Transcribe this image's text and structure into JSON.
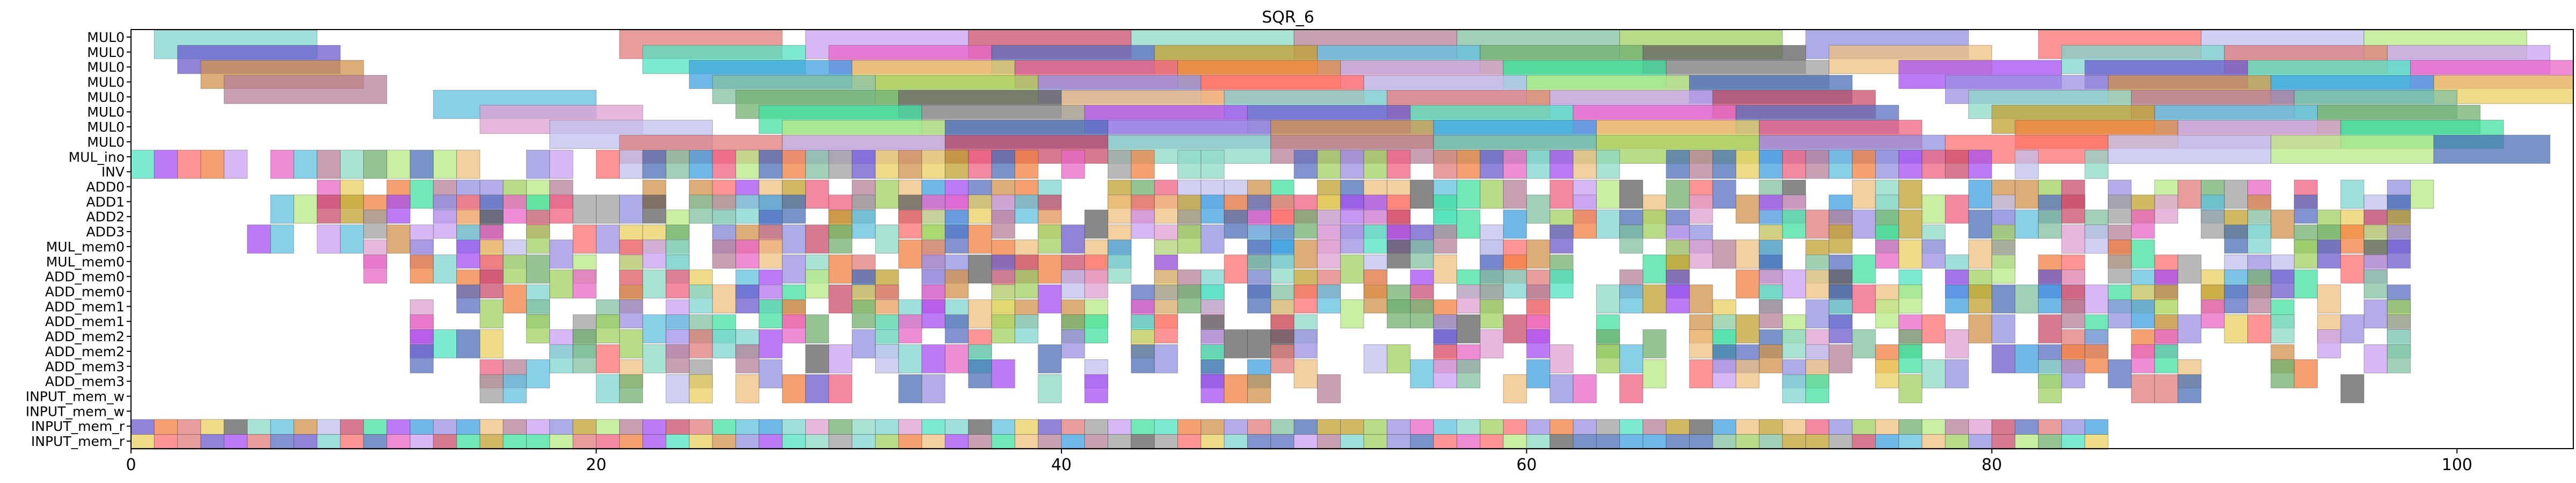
{
  "chart_data": {
    "type": "gantt",
    "title": "SQR_6",
    "xlabel": "",
    "ylabel": "",
    "xlim": [
      0,
      105
    ],
    "x_ticks": [
      0,
      20,
      40,
      60,
      80,
      100
    ],
    "grid": false,
    "legend": "none",
    "rows": [
      "MUL0",
      "MUL0",
      "MUL0",
      "MUL0",
      "MUL0",
      "MUL0",
      "MUL0",
      "MUL0",
      "MUL_ino",
      "INV",
      "ADD0",
      "ADD1",
      "ADD2",
      "ADD3",
      "MUL_mem0",
      "MUL_mem0",
      "ADD_mem0",
      "ADD_mem0",
      "ADD_mem1",
      "ADD_mem1",
      "ADD_mem2",
      "ADD_mem2",
      "ADD_mem3",
      "ADD_mem3",
      "INPUT_mem_w",
      "INPUT_mem_w",
      "INPUT_mem_r",
      "INPUT_mem_r"
    ],
    "palette": [
      "#7fd6d0",
      "#b8e986",
      "#a64ff2",
      "#e07b7b",
      "#4a6fb5",
      "#6a5acd",
      "#c9a0f0",
      "#9b8fe0",
      "#50e3c2",
      "#c94c6a",
      "#d2924a",
      "#e865c8",
      "#8fd8c8",
      "#3fa0e0",
      "#5a6fc0",
      "#b67f9a",
      "#e8d060",
      "#c0a030",
      "#80c0a0",
      "#f06080",
      "#60c0e0",
      "#a0d060",
      "#f08040",
      "#70b070",
      "#9090e0",
      "#e0a0d0",
      "#606060",
      "#ff7070",
      "#40e0a0",
      "#f0c080",
      "#c0c0f0",
      "#a0a0a0"
    ],
    "mul_bars": [
      [
        [
          1,
          8
        ],
        [
          21,
          28
        ],
        [
          29,
          36
        ],
        [
          36,
          43
        ],
        [
          43,
          50
        ],
        [
          50,
          57
        ],
        [
          57,
          64
        ],
        [
          64,
          71
        ],
        [
          72,
          79
        ],
        [
          82,
          89
        ],
        [
          89,
          96
        ],
        [
          96,
          103
        ]
      ],
      [
        [
          2,
          9
        ],
        [
          22,
          29
        ],
        [
          30,
          37
        ],
        [
          37,
          44
        ],
        [
          44,
          51
        ],
        [
          51,
          58
        ],
        [
          58,
          65
        ],
        [
          65,
          72
        ],
        [
          73,
          80
        ],
        [
          83,
          90
        ],
        [
          90,
          97
        ],
        [
          97,
          104
        ]
      ],
      [
        [
          3,
          10
        ],
        [
          24,
          31
        ],
        [
          31,
          38
        ],
        [
          38,
          45
        ],
        [
          45,
          52
        ],
        [
          52,
          59
        ],
        [
          59,
          66
        ],
        [
          66,
          73
        ],
        [
          76,
          83
        ],
        [
          84,
          91
        ],
        [
          91,
          98
        ],
        [
          98,
          105
        ]
      ],
      [
        [
          4,
          11
        ],
        [
          25,
          32
        ],
        [
          32,
          39
        ],
        [
          39,
          46
        ],
        [
          46,
          53
        ],
        [
          53,
          60
        ],
        [
          60,
          67
        ],
        [
          67,
          74
        ],
        [
          78,
          85
        ],
        [
          85,
          92
        ],
        [
          92,
          99
        ],
        [
          99,
          106
        ]
      ],
      [
        [
          13,
          20
        ],
        [
          26,
          33
        ],
        [
          33,
          40
        ],
        [
          40,
          47
        ],
        [
          47,
          54
        ],
        [
          54,
          61
        ],
        [
          61,
          68
        ],
        [
          68,
          75
        ],
        [
          79,
          86
        ],
        [
          86,
          93
        ],
        [
          93,
          100
        ]
      ],
      [
        [
          15,
          22
        ],
        [
          27,
          34
        ],
        [
          34,
          41
        ],
        [
          41,
          48
        ],
        [
          48,
          55
        ],
        [
          55,
          62
        ],
        [
          62,
          69
        ],
        [
          69,
          76
        ],
        [
          80,
          87
        ],
        [
          87,
          94
        ],
        [
          94,
          101
        ]
      ],
      [
        [
          18,
          25
        ],
        [
          28,
          35
        ],
        [
          35,
          42
        ],
        [
          42,
          49
        ],
        [
          49,
          56
        ],
        [
          56,
          63
        ],
        [
          63,
          70
        ],
        [
          70,
          77
        ],
        [
          81,
          88
        ],
        [
          88,
          95
        ],
        [
          95,
          102
        ]
      ],
      [
        [
          21,
          28
        ],
        [
          28,
          35
        ],
        [
          35,
          42
        ],
        [
          42,
          49
        ],
        [
          49,
          56
        ],
        [
          56,
          63
        ],
        [
          63,
          70
        ],
        [
          70,
          78
        ],
        [
          78,
          85
        ],
        [
          85,
          92
        ],
        [
          92,
          99
        ],
        [
          99,
          104
        ]
      ]
    ],
    "unit_cells": [
      {
        "row": 8,
        "start": 0,
        "end": 85,
        "density": 0.78,
        "seed": 11
      },
      {
        "row": 10,
        "start": 8,
        "end": 99,
        "density": 0.68,
        "seed": 23
      },
      {
        "row": 11,
        "start": 6,
        "end": 98,
        "density": 0.62,
        "seed": 37
      },
      {
        "row": 12,
        "start": 10,
        "end": 98,
        "density": 0.58,
        "seed": 41
      },
      {
        "row": 13,
        "start": 5,
        "end": 98,
        "density": 0.55,
        "seed": 53
      },
      {
        "row": 14,
        "start": 10,
        "end": 98,
        "density": 0.55,
        "seed": 61
      },
      {
        "row": 15,
        "start": 10,
        "end": 98,
        "density": 0.52,
        "seed": 67
      },
      {
        "row": 16,
        "start": 14,
        "end": 98,
        "density": 0.64,
        "seed": 71
      },
      {
        "row": 17,
        "start": 14,
        "end": 98,
        "density": 0.58,
        "seed": 79
      },
      {
        "row": 18,
        "start": 12,
        "end": 98,
        "density": 0.55,
        "seed": 83
      },
      {
        "row": 19,
        "start": 12,
        "end": 98,
        "density": 0.52,
        "seed": 89
      },
      {
        "row": 20,
        "start": 12,
        "end": 98,
        "density": 0.5,
        "seed": 97
      },
      {
        "row": 21,
        "start": 12,
        "end": 98,
        "density": 0.48,
        "seed": 101
      },
      {
        "row": 22,
        "start": 15,
        "end": 98,
        "density": 0.42,
        "seed": 103
      },
      {
        "row": 23,
        "start": 15,
        "end": 98,
        "density": 0.38,
        "seed": 107
      },
      {
        "row": 26,
        "start": 0,
        "end": 85,
        "density": 1.0,
        "seed": 109
      },
      {
        "row": 27,
        "start": 0,
        "end": 85,
        "density": 1.0,
        "seed": 113
      }
    ]
  }
}
